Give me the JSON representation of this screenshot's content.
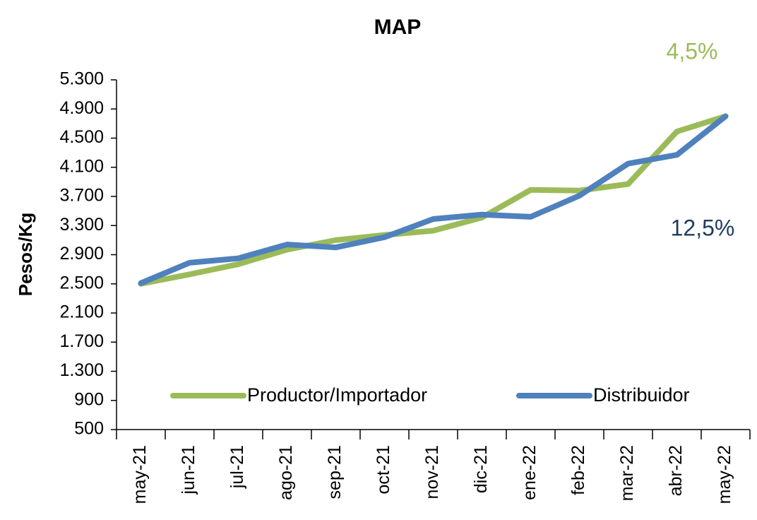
{
  "chart_data": {
    "type": "line",
    "title": "MAP",
    "y_label": "Pesos/Kg",
    "categories": [
      "may-21",
      "jun-21",
      "jul-21",
      "ago-21",
      "sep-21",
      "oct-21",
      "nov-21",
      "dic-21",
      "ene-22",
      "feb-22",
      "mar-22",
      "abr-22",
      "may-22"
    ],
    "series": [
      {
        "name": "Productor/Importador",
        "color": "#9bbb59",
        "values": [
          2500,
          2630,
          2770,
          2970,
          3100,
          3170,
          3230,
          3410,
          3790,
          3780,
          3870,
          4590,
          4800
        ]
      },
      {
        "name": "Distribuidor",
        "color": "#4f81bd",
        "values": [
          2510,
          2790,
          2850,
          3040,
          3000,
          3140,
          3390,
          3450,
          3420,
          3710,
          4150,
          4270,
          4800
        ]
      }
    ],
    "annotations": [
      {
        "text": "4,5%",
        "color": "#9bbb59"
      },
      {
        "text": "12,5%",
        "color": "#1f3b5f"
      }
    ],
    "ylim": [
      500,
      5300
    ],
    "yticks": [
      500,
      900,
      {
        "value": 1300,
        "label": "1.300"
      },
      {
        "value": 1700,
        "label": "1.700"
      },
      {
        "value": 2100,
        "label": "2.100"
      },
      {
        "value": 2500,
        "label": "2.500"
      },
      {
        "value": 2900,
        "label": "2.900"
      },
      {
        "value": 3300,
        "label": "3.300"
      },
      {
        "value": 3700,
        "label": "3.700"
      },
      {
        "value": 4100,
        "label": "4.100"
      },
      {
        "value": 4500,
        "label": "4.500"
      },
      {
        "value": 4900,
        "label": "4.900"
      },
      {
        "value": 5300,
        "label": "5.300"
      }
    ],
    "legend": "bottom"
  }
}
